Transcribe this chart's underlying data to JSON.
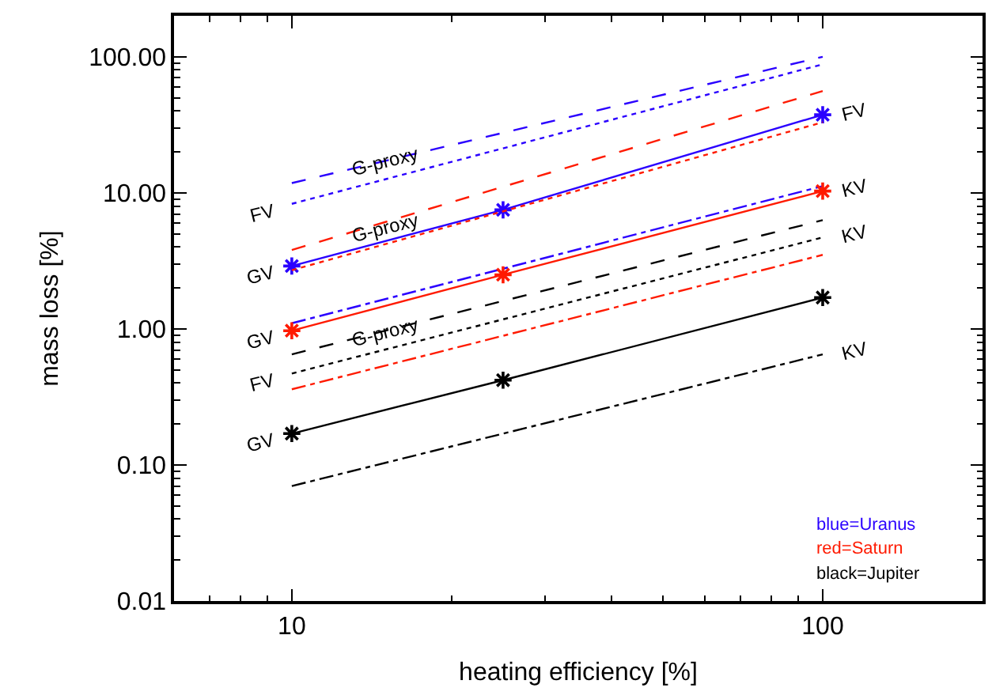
{
  "chart_data": {
    "type": "line",
    "xlabel": "heating efficiency [%]",
    "ylabel": "mass loss [%]",
    "log": "xy",
    "xlim": [
      6,
      200
    ],
    "xticks": [
      10,
      100
    ],
    "ylim": [
      0.01,
      200
    ],
    "yticks": [
      {
        "value": 0.01,
        "label": "0.01"
      },
      {
        "value": 0.1,
        "label": "0.10"
      },
      {
        "value": 1,
        "label": "1.00"
      },
      {
        "value": 10,
        "label": "10.00"
      },
      {
        "value": 100,
        "label": "100.00"
      }
    ],
    "series": [
      {
        "color": "#2a00ff",
        "line_style": "dashed",
        "marker": "none",
        "x": [
          10,
          100
        ],
        "values": [
          11.8,
          100
        ]
      },
      {
        "color": "#2a00ff",
        "line_style": "dotted",
        "marker": "none",
        "x": [
          10,
          100
        ],
        "values": [
          8.3,
          88
        ]
      },
      {
        "color": "#2a00ff",
        "line_style": "solid",
        "marker": "cross",
        "x": [
          10,
          25,
          100
        ],
        "values": [
          2.9,
          7.5,
          37.5
        ]
      },
      {
        "color": "#2a00ff",
        "line_style": "dashdot",
        "marker": "none",
        "x": [
          10,
          100
        ],
        "values": [
          1.1,
          11.2
        ]
      },
      {
        "color": "#ff1a00",
        "line_style": "dashed",
        "marker": "none",
        "x": [
          10,
          100
        ],
        "values": [
          3.8,
          56
        ]
      },
      {
        "color": "#ff1a00",
        "line_style": "dotted",
        "marker": "none",
        "x": [
          10,
          100
        ],
        "values": [
          2.7,
          33
        ]
      },
      {
        "color": "#ff1a00",
        "line_style": "solid",
        "marker": "cross",
        "x": [
          10,
          25,
          100
        ],
        "values": [
          0.97,
          2.5,
          10.3
        ]
      },
      {
        "color": "#ff1a00",
        "line_style": "dashdot",
        "marker": "none",
        "x": [
          10,
          100
        ],
        "values": [
          0.36,
          3.5
        ]
      },
      {
        "color": "#000000",
        "line_style": "dashed",
        "marker": "none",
        "x": [
          10,
          100
        ],
        "values": [
          0.65,
          6.3
        ]
      },
      {
        "color": "#000000",
        "line_style": "dotted",
        "marker": "none",
        "x": [
          10,
          100
        ],
        "values": [
          0.47,
          4.7
        ]
      },
      {
        "color": "#000000",
        "line_style": "solid",
        "marker": "cross",
        "x": [
          10,
          25,
          100
        ],
        "values": [
          0.17,
          0.42,
          1.7
        ]
      },
      {
        "color": "#000000",
        "line_style": "dashdot",
        "marker": "none",
        "x": [
          10,
          100
        ],
        "values": [
          0.07,
          0.65
        ]
      }
    ],
    "annotations": [
      {
        "text": "G-proxy",
        "x": 15,
        "y": 17
      },
      {
        "text": "FV",
        "x": 10,
        "y": 8.3
      },
      {
        "text": "G-proxy",
        "x": 15,
        "y": 5.6
      },
      {
        "text": "GV",
        "x": 10,
        "y": 2.9
      },
      {
        "text": "GV",
        "x": 10,
        "y": 0.97
      },
      {
        "text": "G-proxy",
        "x": 15,
        "y": 0.95
      },
      {
        "text": "FV",
        "x": 10,
        "y": 0.47
      },
      {
        "text": "GV",
        "x": 10,
        "y": 0.17
      },
      {
        "text": "FV",
        "x": 100,
        "y": 37.5
      },
      {
        "text": "KV",
        "x": 100,
        "y": 10.3
      },
      {
        "text": "KV",
        "x": 100,
        "y": 4.7
      },
      {
        "text": "KV",
        "x": 100,
        "y": 0.65
      },
      "blue=Uranus",
      "red=Saturn",
      "black=Jupiter"
    ]
  }
}
